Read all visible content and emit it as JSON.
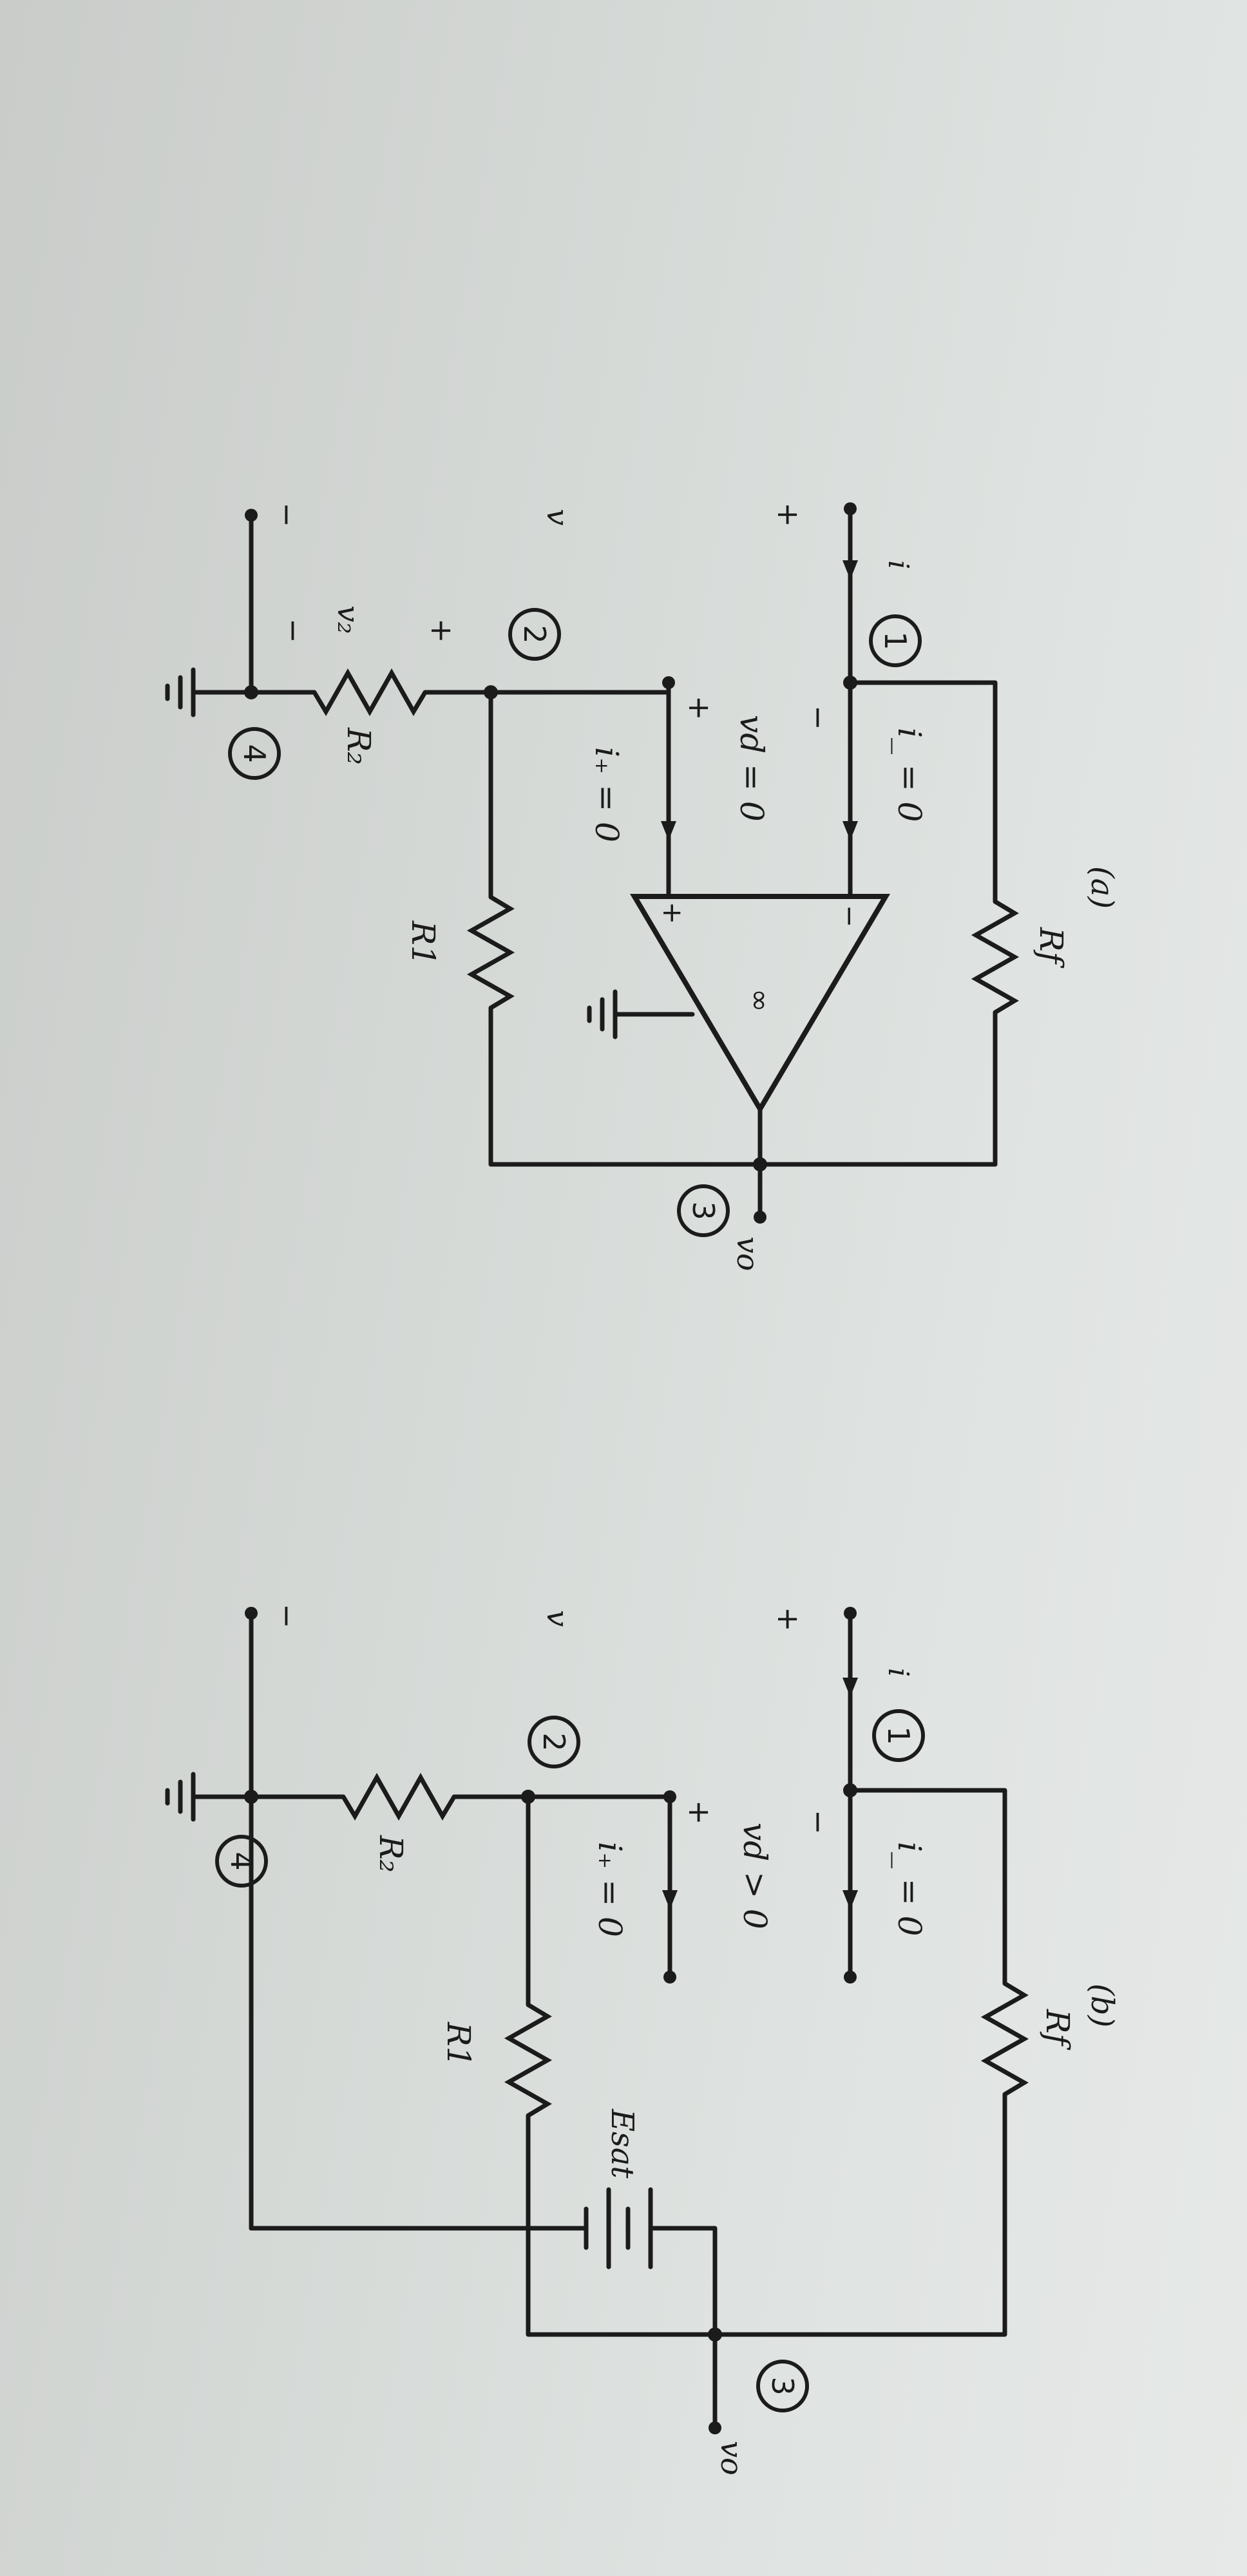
{
  "circuit_a": {
    "caption": "(a)",
    "node1": "1",
    "node2": "2",
    "node3": "3",
    "node4": "4",
    "i": "i",
    "i_minus": "i_ = 0",
    "i_plus": "i₊ = 0",
    "vd": "vd = 0",
    "v": "v",
    "v2": "v₂",
    "vo": "vo",
    "Rf": "Rf",
    "R1": "R1",
    "R2": "R₂",
    "plus": "+",
    "minus": "−",
    "inf": "∞"
  },
  "circuit_b": {
    "caption": "(b)",
    "node1": "1",
    "node2": "2",
    "node3": "3",
    "node4": "4",
    "i": "i",
    "i_minus": "i_ = 0",
    "i_plus": "i₊ = 0",
    "vd": "vd > 0",
    "v": "v",
    "vo": "vo",
    "Rf": "Rf",
    "R1": "R1",
    "R2": "R₂",
    "Esat": "Esat",
    "plus": "+",
    "minus": "−"
  }
}
